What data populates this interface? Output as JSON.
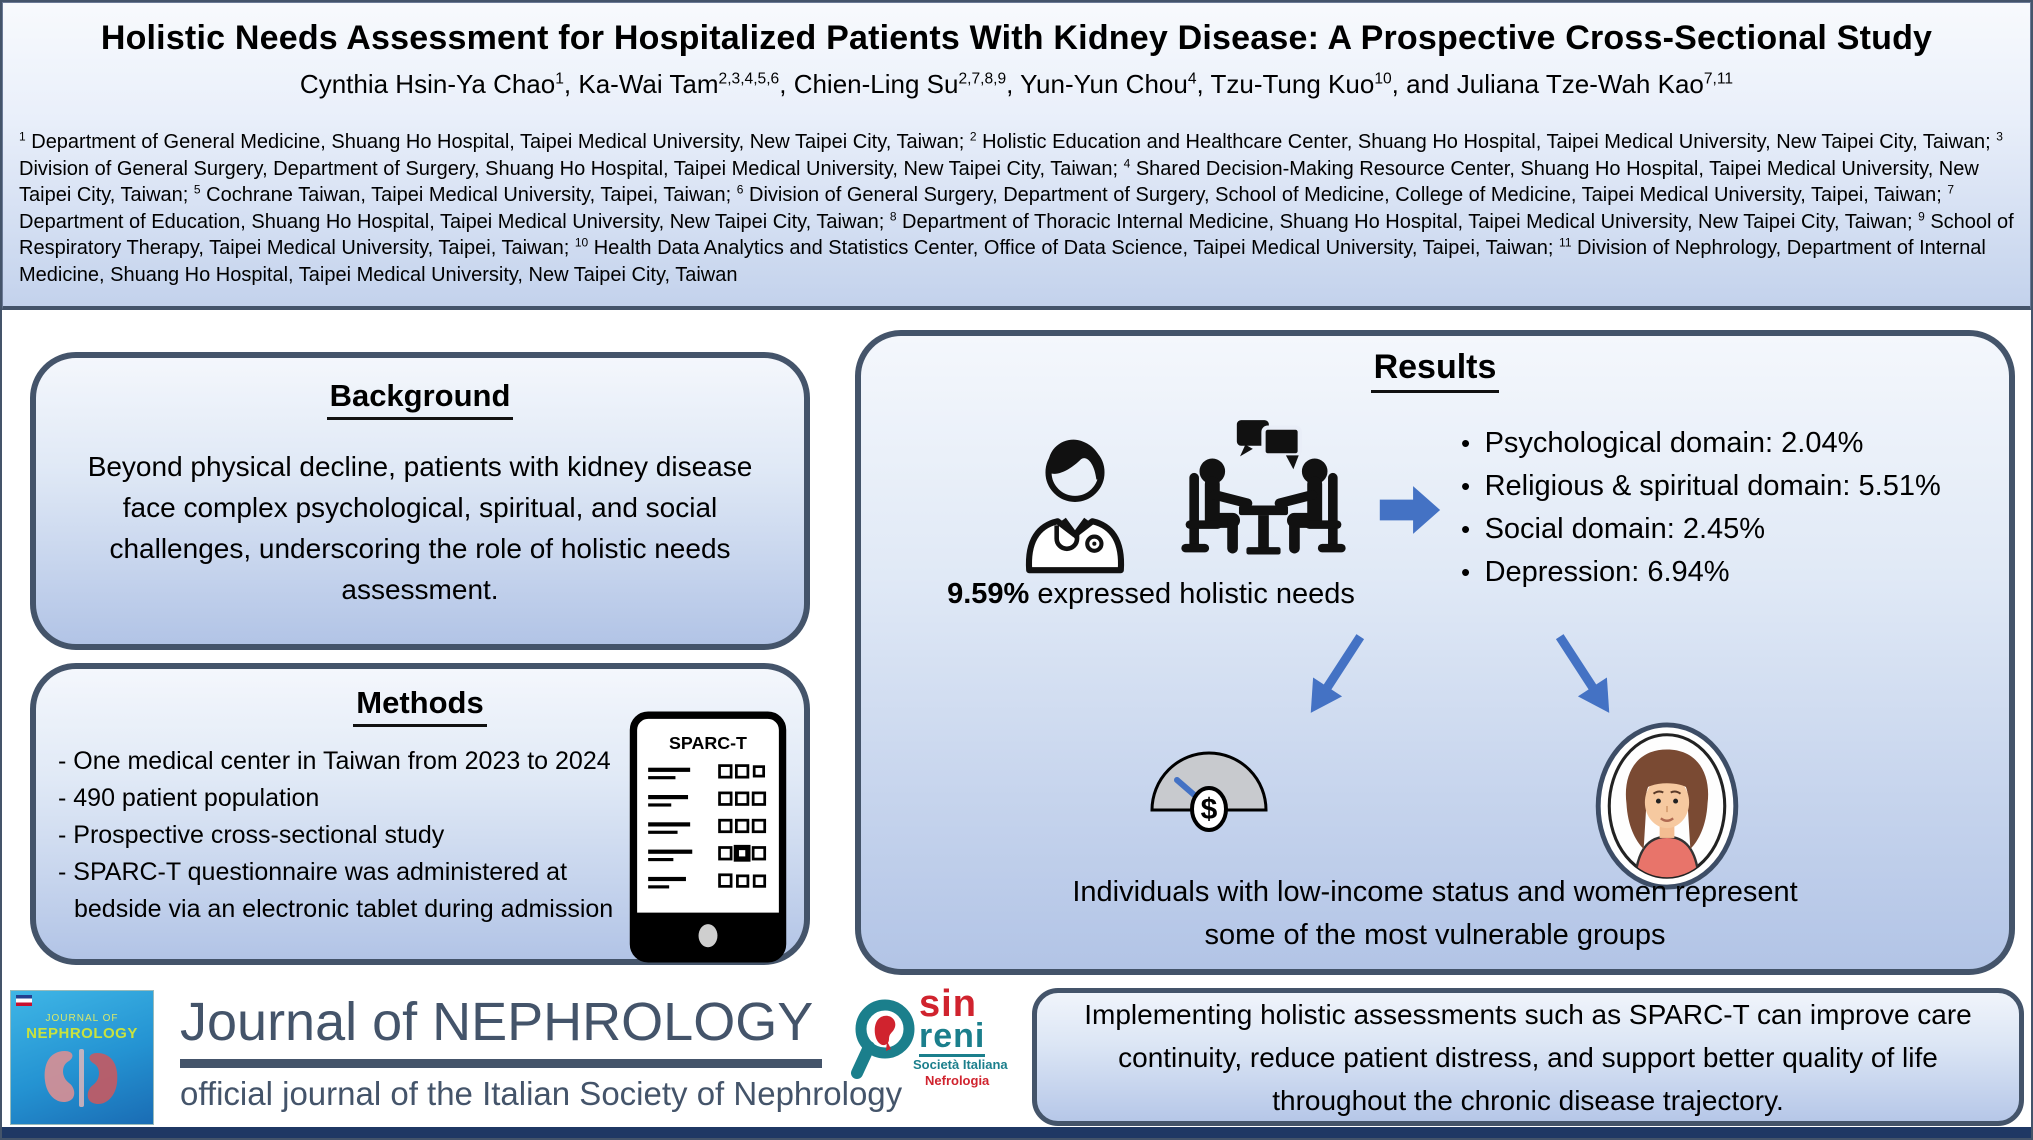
{
  "header": {
    "title": "Holistic Needs Assessment for Hospitalized Patients With Kidney Disease: A Prospective Cross-Sectional Study",
    "authors": [
      {
        "name": "Cynthia Hsin-Ya Chao",
        "sup": "1"
      },
      {
        "name": "Ka-Wai Tam",
        "sup": "2,3,4,5,6"
      },
      {
        "name": "Chien-Ling Su",
        "sup": "2,7,8,9"
      },
      {
        "name": "Yun-Yun Chou",
        "sup": "4"
      },
      {
        "name": "Tzu-Tung Kuo",
        "sup": "10"
      },
      {
        "name": "Juliana Tze-Wah Kao",
        "sup": "7,11"
      }
    ],
    "affiliations": [
      {
        "sup": "1",
        "text": "Department of General Medicine, Shuang Ho Hospital, Taipei Medical University, New Taipei City, Taiwan"
      },
      {
        "sup": "2",
        "text": "Holistic Education and Healthcare Center, Shuang Ho Hospital, Taipei Medical University, New Taipei City, Taiwan"
      },
      {
        "sup": "3",
        "text": "Division of General Surgery, Department of Surgery, Shuang Ho Hospital, Taipei Medical University, New Taipei City, Taiwan"
      },
      {
        "sup": "4",
        "text": "Shared Decision-Making Resource Center, Shuang Ho Hospital, Taipei Medical University, New Taipei City, Taiwan"
      },
      {
        "sup": "5",
        "text": "Cochrane Taiwan, Taipei Medical University, Taipei, Taiwan"
      },
      {
        "sup": "6",
        "text": "Division of General Surgery, Department of Surgery, School of Medicine, College of Medicine, Taipei Medical University, Taipei, Taiwan"
      },
      {
        "sup": "7",
        "text": "Department of Education, Shuang Ho Hospital, Taipei Medical University, New Taipei City, Taiwan"
      },
      {
        "sup": "8",
        "text": "Department of Thoracic Internal Medicine, Shuang Ho Hospital, Taipei Medical University, New Taipei City, Taiwan"
      },
      {
        "sup": "9",
        "text": "School of Respiratory Therapy, Taipei Medical University, Taipei, Taiwan"
      },
      {
        "sup": "10",
        "text": "Health Data Analytics and Statistics Center, Office of Data Science, Taipei Medical University, Taipei, Taiwan"
      },
      {
        "sup": "11",
        "text": "Division of Nephrology, Department of Internal Medicine, Shuang Ho Hospital, Taipei Medical University, New Taipei City, Taiwan"
      }
    ]
  },
  "background": {
    "title": "Background",
    "body": "Beyond physical decline, patients with kidney disease face complex psychological, spiritual, and social challenges, underscoring the role of holistic needs assessment."
  },
  "methods": {
    "title": "Methods",
    "bullets": [
      "- One medical center in Taiwan from 2023 to 2024",
      "- 490 patient population",
      "- Prospective cross-sectional study",
      "- SPARC-T questionnaire was administered at bedside via an electronic tablet during admission"
    ],
    "tablet_label": "SPARC-T"
  },
  "results": {
    "title": "Results",
    "stat_value": "9.59%",
    "stat_text": " expressed holistic needs",
    "domains": [
      "Psychological domain: 2.04%",
      "Religious & spiritual domain: 5.51%",
      "Social domain: 2.45%",
      "Depression: 6.94%"
    ],
    "currency_symbol": "$",
    "vulnerable_line1": "Individuals with low-income status and women represent",
    "vulnerable_line2": "some of the most vulnerable groups"
  },
  "footer": {
    "journal_title": "Journal of NEPHROLOGY",
    "journal_subtitle": "official journal of the Italian Society of Nephrology",
    "cover": {
      "line1": "JOURNAL OF",
      "line2": "NEPHROLOGY"
    },
    "sin_logo": {
      "word1": "sin",
      "word2": "reni",
      "word3": "Società Italiana",
      "word4": "Nefrologia"
    },
    "conclusion": "Implementing holistic assessments such as SPARC-T can improve care continuity, reduce patient distress, and support better quality of life throughout the chronic disease trajectory."
  },
  "colors": {
    "accent_blue": "#4472c4",
    "slate_border": "#44546a",
    "navy_bar": "#1f3864",
    "sin_red": "#d0232e",
    "sin_teal": "#1b7f8c"
  }
}
